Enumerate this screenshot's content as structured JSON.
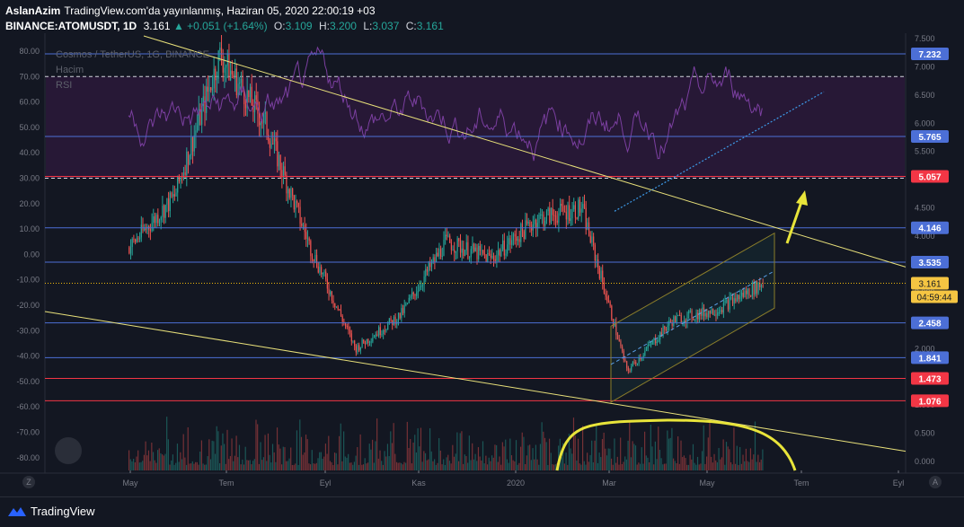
{
  "header": {
    "author": "AslanAzim",
    "published": "TradingView.com'da yayınlanmış, Haziran 05, 2020 22:00:19 +03",
    "symbol": "BINANCE:ATOMUSDT, 1D",
    "last": "3.161",
    "change": "▲ +0.051 (+1.64%)",
    "o_label": "O:",
    "o": "3.109",
    "h_label": "H:",
    "h": "3.200",
    "l_label": "L:",
    "l": "3.037",
    "c_label": "C:",
    "c": "3.161"
  },
  "overlay": {
    "name": "Cosmos / TetherUS, 1G, BINANCE",
    "volume": "Hacim",
    "rsi": "RSI"
  },
  "footer": {
    "brand": "TradingView",
    "z": "Z",
    "a": "A"
  },
  "colors": {
    "background": "#131722",
    "up": "#26a69a",
    "down": "#ef5350",
    "blue_line": "#4c6fd6",
    "red_line": "#f23645",
    "trend": "#e8e07a",
    "rsi": "#7b3fa0",
    "arrow": "#e8e43a"
  },
  "chart_data": {
    "type": "candlestick",
    "symbol": "BINANCE:ATOMUSDT",
    "interval": "1D",
    "x_tick_labels": [
      "May",
      "Tem",
      "Eyl",
      "Kas",
      "2020",
      "Mar",
      "May",
      "Tem",
      "Eyl"
    ],
    "left_axis": {
      "ticks": [
        "80.00",
        "70.00",
        "60.00",
        "50.00",
        "40.00",
        "30.00",
        "20.00",
        "10.00",
        "0.00",
        "-10.00",
        "-20.00",
        "-30.00",
        "-40.00",
        "-50.00",
        "-60.00",
        "-70.00",
        "-80.00"
      ],
      "range": [
        -85,
        86
      ]
    },
    "right_axis": {
      "ticks": [
        "7.500",
        "7.000",
        "6.500",
        "6.000",
        "5.500",
        "5.000",
        "4.500",
        "4.000",
        "3.500",
        "3.000",
        "2.500",
        "2.000",
        "1.500",
        "1.000",
        "0.500",
        "0.000"
      ],
      "range": [
        -0.16,
        7.55
      ]
    },
    "horizontal_levels": [
      {
        "value": "7.232",
        "color": "blue"
      },
      {
        "value": "5.765",
        "color": "blue"
      },
      {
        "value": "5.057",
        "color": "red"
      },
      {
        "value": "4.146",
        "color": "blue"
      },
      {
        "value": "3.535",
        "color": "blue"
      },
      {
        "value": "2.458",
        "color": "blue"
      },
      {
        "value": "1.841",
        "color": "blue"
      },
      {
        "value": "1.473",
        "color": "red"
      },
      {
        "value": "1.076",
        "color": "red"
      }
    ],
    "rsi_dashed_levels": [
      70,
      30
    ],
    "last_price": {
      "value": "3.161",
      "countdown": "04:59:44"
    },
    "price_path": [
      [
        "Apr 2019",
        3.8
      ],
      [
        "May 2019",
        4.7
      ],
      [
        "Jun 2019",
        7.2
      ],
      [
        "Jul 2019",
        6.0
      ],
      [
        "Aug 2019",
        3.8
      ],
      [
        "Sep 2019",
        2.0
      ],
      [
        "Oct 2019",
        2.6
      ],
      [
        "Nov 2019",
        3.9
      ],
      [
        "Dec 2019",
        3.6
      ],
      [
        "Jan 2020",
        4.3
      ],
      [
        "Feb 2020",
        4.5
      ],
      [
        "Mar 2020",
        1.6
      ],
      [
        "Apr 2020",
        2.5
      ],
      [
        "May 2020",
        2.7
      ],
      [
        "Jun 2020",
        3.16
      ]
    ],
    "grid": false
  }
}
